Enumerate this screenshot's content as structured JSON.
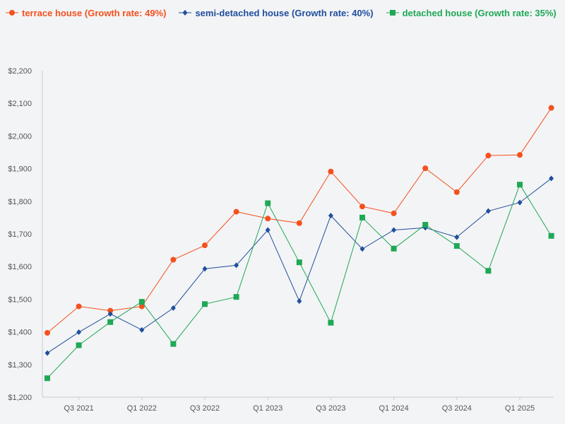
{
  "chart_data": {
    "type": "line",
    "title": "",
    "xlabel": "",
    "ylabel": "",
    "ylim": [
      1200,
      2200
    ],
    "y_ticks": [
      1200,
      1300,
      1400,
      1500,
      1600,
      1700,
      1800,
      1900,
      2000,
      2100,
      2200
    ],
    "y_tick_labels": [
      "$1,200",
      "$1,300",
      "$1,400",
      "$1,500",
      "$1,600",
      "$1,700",
      "$1,800",
      "$1,900",
      "$2,000",
      "$2,100",
      "$2,200"
    ],
    "x_tick_labels": [
      {
        "index": 1,
        "label": "Q3 2021"
      },
      {
        "index": 3,
        "label": "Q1 2022"
      },
      {
        "index": 5,
        "label": "Q3 2022"
      },
      {
        "index": 7,
        "label": "Q1 2023"
      },
      {
        "index": 9,
        "label": "Q3 2023"
      },
      {
        "index": 11,
        "label": "Q1 2024"
      },
      {
        "index": 13,
        "label": "Q3 2024"
      },
      {
        "index": 15,
        "label": "Q1 2025"
      }
    ],
    "categories": [
      "Q2 2021",
      "Q3 2021",
      "Q4 2021",
      "Q1 2022",
      "Q2 2022",
      "Q3 2022",
      "Q4 2022",
      "Q1 2023",
      "Q2 2023",
      "Q3 2023",
      "Q4 2023",
      "Q1 2024",
      "Q2 2024",
      "Q3 2024",
      "Q4 2024",
      "Q1 2025",
      "Q2 2025"
    ],
    "series": [
      {
        "name": "terrace house (Growth rate: 49%)",
        "color": "#f4511e",
        "marker": "circle",
        "values": [
          1397,
          1478,
          1465,
          1478,
          1621,
          1665,
          1768,
          1747,
          1733,
          1891,
          1784,
          1763,
          1901,
          1828,
          1940,
          1942,
          2086
        ]
      },
      {
        "name": "semi-detached house (Growth rate: 40%)",
        "color": "#1f4e9c",
        "marker": "diamond",
        "values": [
          1335,
          1399,
          1455,
          1406,
          1473,
          1593,
          1604,
          1712,
          1494,
          1756,
          1654,
          1712,
          1719,
          1690,
          1770,
          1796,
          1870
        ]
      },
      {
        "name": "detached house (Growth rate: 35%)",
        "color": "#1fa855",
        "marker": "square",
        "values": [
          1258,
          1359,
          1430,
          1492,
          1363,
          1485,
          1507,
          1794,
          1613,
          1428,
          1750,
          1655,
          1728,
          1663,
          1587,
          1851,
          1694
        ]
      }
    ],
    "legend_position": "top-left",
    "grid": false
  }
}
